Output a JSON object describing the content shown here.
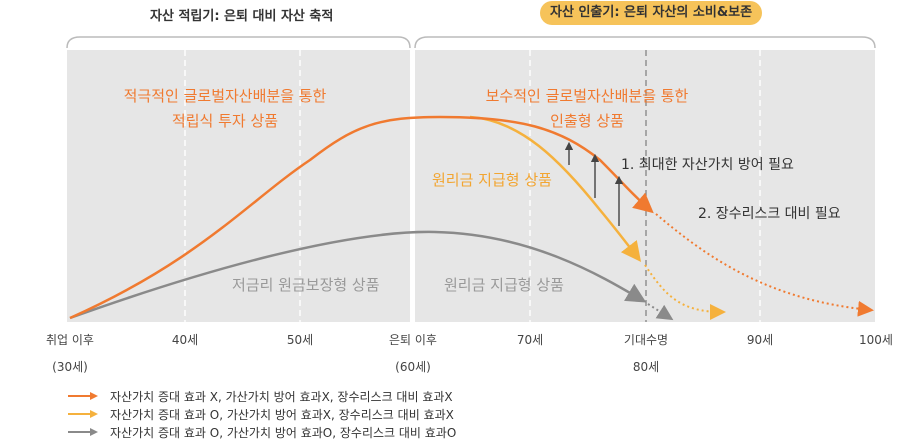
{
  "phases": {
    "accumulation": "자산 적립기:  은퇴 대비 자산 축적",
    "withdrawal": "자산 인출기: 은퇴 자산의 소비&보존"
  },
  "x_axis": {
    "ticks": [
      "취업 이후",
      "40세",
      "50세",
      "은퇴 이후",
      "70세",
      "기대수명",
      "90세",
      "100세"
    ],
    "sub": {
      "start": "(30세)",
      "retire": "(60세)",
      "expected": "80세"
    }
  },
  "annotations": {
    "accumulation_product": [
      "적극적인 글로벌자산배분을 통한",
      "적립식 투자 상품"
    ],
    "withdrawal_product": [
      "보수적인 글로벌자산배분을 통한",
      "인출형 상품"
    ],
    "principal_payment_yellow": "원리금 지급형 상품",
    "low_rate_guaranteed": "저금리 원금보장형 상품",
    "principal_payment_gray": "원리금 지급형 상품",
    "need1": "1. 최대한 자산가치 방어 필요",
    "need2": "2. 장수리스크 대비 필요"
  },
  "colors": {
    "orange": "#f07a30",
    "yellow": "#f5b13d",
    "gray": "#8a8a8a",
    "panel": "#e6e6e6"
  },
  "legend": [
    {
      "label": "자산가치 증대 효과 X, 가산가치 방어 효과X, 장수리스크 대비  효과X",
      "color": "#f07a30"
    },
    {
      "label": "자산가치 증대 효과 O, 가산가치 방어 효과X, 장수리스크 대비  효과X",
      "color": "#f5b13d"
    },
    {
      "label": "자산가치 증대 효과 O, 가산가치 방어 효과O, 장수리스크 대비  효과O",
      "color": "#8a8a8a"
    }
  ]
}
